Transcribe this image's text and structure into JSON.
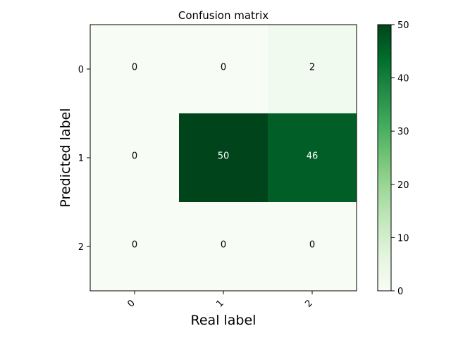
{
  "chart_data": {
    "type": "heatmap",
    "title": "Confusion matrix",
    "xlabel": "Real label",
    "ylabel": "Predicted label",
    "x_categories": [
      "0",
      "1",
      "2"
    ],
    "y_categories": [
      "0",
      "1",
      "2"
    ],
    "values": [
      [
        0,
        0,
        2
      ],
      [
        0,
        50,
        46
      ],
      [
        0,
        0,
        0
      ]
    ],
    "colormap": "Greens",
    "colorbar": {
      "range": [
        0,
        50
      ],
      "ticks": [
        "0",
        "10",
        "20",
        "30",
        "40",
        "50"
      ]
    }
  }
}
